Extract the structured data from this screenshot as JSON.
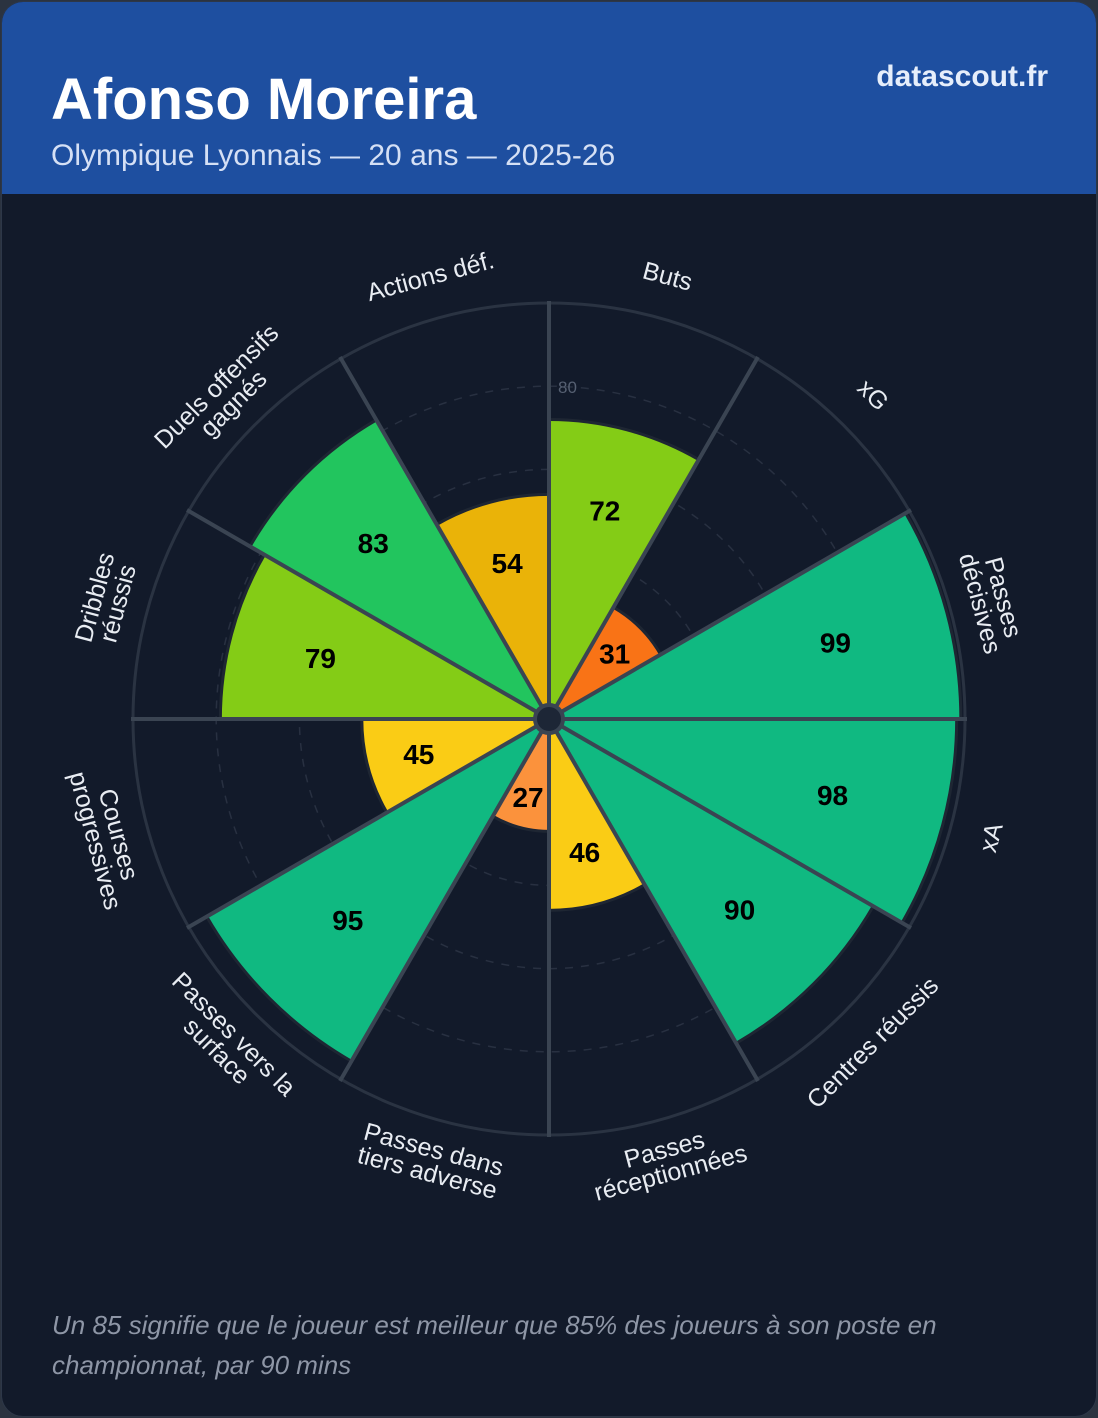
{
  "header": {
    "player_name": "Afonso Moreira",
    "subtitle": "Olympique Lyonnais — 20 ans — 2025-26",
    "brand": "datascout.fr"
  },
  "footnote": "Un 85 signifie que le joueur est meilleur que 85% des joueurs à son poste en championnat, par 90 mins",
  "colors": {
    "header_bg": "#1e4fa0",
    "card_bg": "#121a2a",
    "grid": "#3a4452",
    "high": "#10b981",
    "good": "#22c55e",
    "above_avg": "#84cc16",
    "avg_high": "#eab308",
    "avg": "#facc15",
    "low": "#f97316",
    "low_light": "#fb923c"
  },
  "chart_data": {
    "type": "pie",
    "subtype": "polar-area (pizza chart)",
    "title": "Afonso Moreira",
    "scale": [
      0,
      100
    ],
    "ring_ticks": [
      20,
      40,
      60,
      80
    ],
    "ring_tick_label_shown": "80",
    "categories": [
      "Buts",
      "xG",
      "Passes décisives",
      "xA",
      "Centres réussis",
      "Passes réceptionnées",
      "Passes dans tiers adverse",
      "Passes vers la surface",
      "Courses progressives",
      "Dribbles réussis",
      "Duels offensifs gagnés",
      "Actions déf."
    ],
    "label_lines": [
      [
        "Buts"
      ],
      [
        "xG"
      ],
      [
        "Passes",
        "décisives"
      ],
      [
        "xA"
      ],
      [
        "Centres réussis"
      ],
      [
        "Passes",
        "réceptionnées"
      ],
      [
        "Passes dans",
        "tiers adverse"
      ],
      [
        "Passes vers la",
        "surface"
      ],
      [
        "Courses",
        "progressives"
      ],
      [
        "Dribbles",
        "réussis"
      ],
      [
        "Duels offensifs",
        "gagnés"
      ],
      [
        "Actions déf."
      ]
    ],
    "values": [
      72,
      31,
      99,
      98,
      90,
      46,
      27,
      95,
      45,
      79,
      83,
      54
    ],
    "slice_colors": [
      "#84cc16",
      "#f97316",
      "#10b981",
      "#10b981",
      "#10b981",
      "#facc15",
      "#fb923c",
      "#10b981",
      "#facc15",
      "#84cc16",
      "#22c55e",
      "#eab308"
    ]
  }
}
